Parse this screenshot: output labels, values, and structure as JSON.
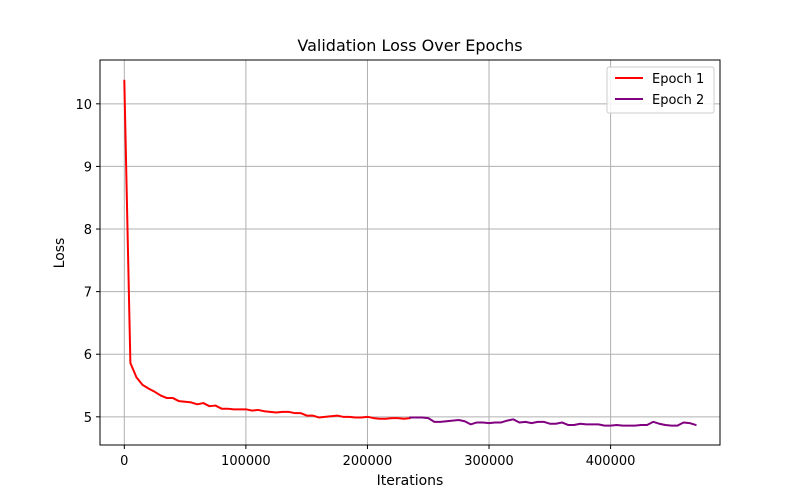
{
  "chart_data": {
    "type": "line",
    "title": "Validation Loss Over Epochs",
    "xlabel": "Iterations",
    "ylabel": "Loss",
    "xlim": [
      -20000,
      490000
    ],
    "ylim": [
      4.55,
      10.7
    ],
    "x_ticks": [
      0,
      100000,
      200000,
      300000,
      400000
    ],
    "x_tick_labels": [
      "0",
      "100000",
      "200000",
      "300000",
      "400000"
    ],
    "y_ticks": [
      5,
      6,
      7,
      8,
      9,
      10
    ],
    "y_tick_labels": [
      "5",
      "6",
      "7",
      "8",
      "9",
      "10"
    ],
    "grid": true,
    "legend_position": "top-right",
    "series": [
      {
        "name": "Epoch 1",
        "color": "#ff0000",
        "x": [
          0,
          5000,
          10000,
          15000,
          20000,
          25000,
          30000,
          35000,
          40000,
          45000,
          50000,
          55000,
          60000,
          65000,
          70000,
          75000,
          80000,
          85000,
          90000,
          95000,
          100000,
          105000,
          110000,
          115000,
          120000,
          125000,
          130000,
          135000,
          140000,
          145000,
          150000,
          155000,
          160000,
          165000,
          170000,
          175000,
          180000,
          185000,
          190000,
          195000,
          200000,
          205000,
          210000,
          215000,
          220000,
          225000,
          230000,
          235000
        ],
        "y": [
          10.37,
          5.86,
          5.63,
          5.51,
          5.45,
          5.4,
          5.34,
          5.3,
          5.3,
          5.25,
          5.24,
          5.23,
          5.2,
          5.22,
          5.17,
          5.18,
          5.13,
          5.13,
          5.12,
          5.12,
          5.12,
          5.1,
          5.11,
          5.09,
          5.08,
          5.07,
          5.08,
          5.08,
          5.06,
          5.06,
          5.02,
          5.02,
          4.99,
          5.0,
          5.01,
          5.02,
          5.0,
          5.0,
          4.99,
          4.99,
          5.0,
          4.98,
          4.97,
          4.97,
          4.98,
          4.98,
          4.97,
          4.98
        ]
      },
      {
        "name": "Epoch 2",
        "color": "#800080",
        "x": [
          235000,
          240000,
          245000,
          250000,
          255000,
          260000,
          265000,
          270000,
          275000,
          280000,
          285000,
          290000,
          295000,
          300000,
          305000,
          310000,
          315000,
          320000,
          325000,
          330000,
          335000,
          340000,
          345000,
          350000,
          355000,
          360000,
          365000,
          370000,
          375000,
          380000,
          385000,
          390000,
          395000,
          400000,
          405000,
          410000,
          415000,
          420000,
          425000,
          430000,
          435000,
          440000,
          445000,
          450000,
          455000,
          460000,
          465000,
          470000
        ],
        "y": [
          4.99,
          4.99,
          4.99,
          4.98,
          4.92,
          4.92,
          4.93,
          4.94,
          4.95,
          4.93,
          4.88,
          4.91,
          4.91,
          4.9,
          4.91,
          4.91,
          4.94,
          4.96,
          4.91,
          4.92,
          4.9,
          4.92,
          4.92,
          4.89,
          4.89,
          4.91,
          4.87,
          4.87,
          4.89,
          4.88,
          4.88,
          4.88,
          4.86,
          4.86,
          4.87,
          4.86,
          4.86,
          4.86,
          4.87,
          4.87,
          4.92,
          4.89,
          4.87,
          4.86,
          4.86,
          4.91,
          4.9,
          4.87
        ]
      }
    ]
  }
}
